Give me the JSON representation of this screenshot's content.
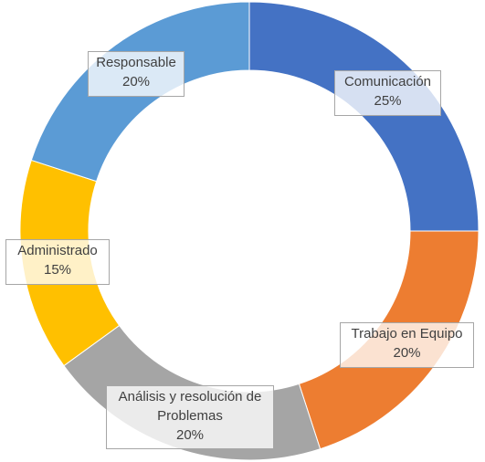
{
  "chart_data": {
    "type": "pie",
    "variant": "donut",
    "legend": "none",
    "slices": [
      {
        "label": "Comunicación",
        "value": 25,
        "display": "25%",
        "color": "#4472C4"
      },
      {
        "label": "Trabajo en Equipo",
        "value": 20,
        "display": "20%",
        "color": "#ED7D31"
      },
      {
        "label": "Análisis y resolución de Problemas",
        "label_lines": [
          "Análisis y resolución de",
          "Problemas"
        ],
        "value": 20,
        "display": "20%",
        "color": "#A5A5A5"
      },
      {
        "label": "Administrado",
        "value": 15,
        "display": "15%",
        "color": "#FFC000"
      },
      {
        "label": "Responsable",
        "value": 20,
        "display": "20%",
        "color": "#5B9BD5"
      }
    ]
  }
}
